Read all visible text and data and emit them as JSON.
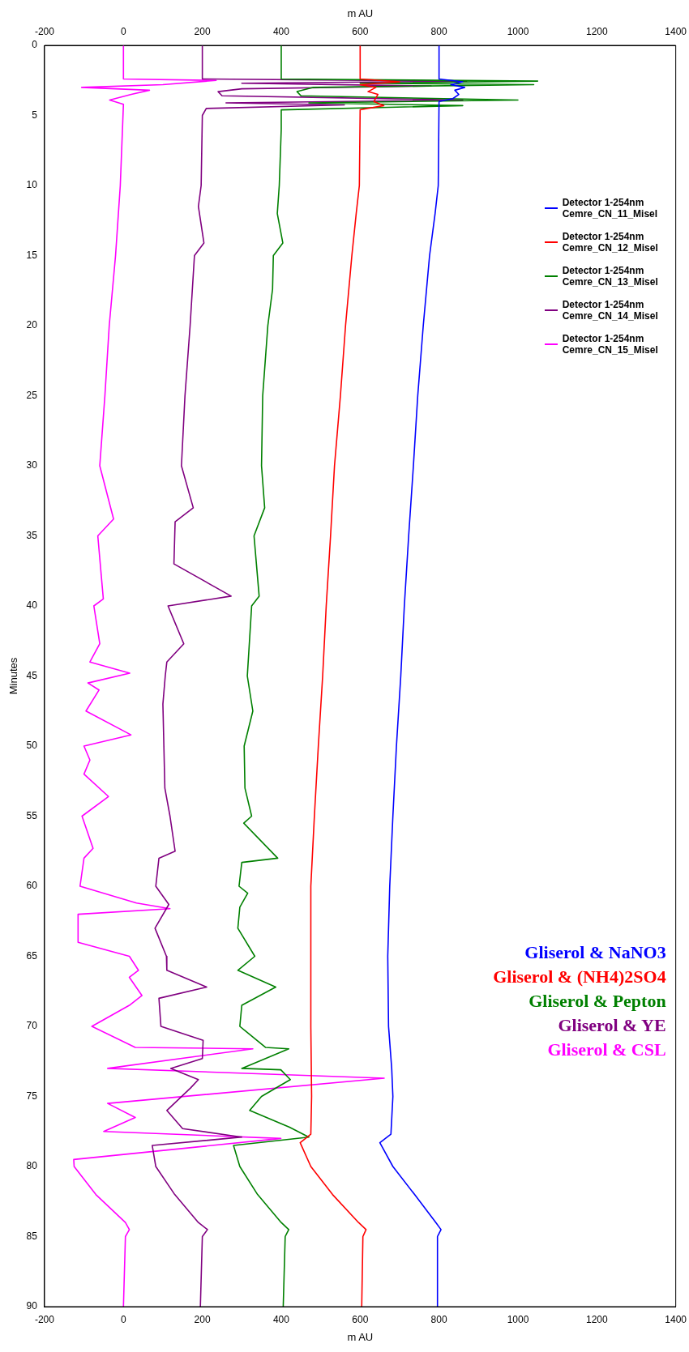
{
  "chart_data": {
    "type": "line",
    "orientation": "horizontal",
    "xlabel": "m AU",
    "x2label": "m AU",
    "ylabel": "Minutes",
    "xlim": [
      -200,
      1400
    ],
    "xticks": [
      -200,
      0,
      200,
      400,
      600,
      800,
      1000,
      1200,
      1400
    ],
    "x2lim": [
      -200,
      1400
    ],
    "x2ticks": [
      -200,
      0,
      200,
      400,
      600,
      800,
      1000,
      1200,
      1400
    ],
    "ylim": [
      90,
      0
    ],
    "yticks": [
      0,
      5,
      10,
      15,
      20,
      25,
      30,
      35,
      40,
      45,
      50,
      55,
      60,
      65,
      70,
      75,
      80,
      85,
      90
    ],
    "grid": false,
    "legend": "right",
    "marker": "none",
    "line_style": "solid",
    "annotations": [
      "Gliserol & NaNO3",
      "Gliserol & (NH4)2SO4",
      "Gliserol & Pepton",
      "Gliserol & YE",
      "Gliserol & CSL"
    ],
    "series": [
      {
        "name": "Detector 1-254nm Cemre_CN_11_Misel",
        "color": "#0000ff",
        "x": [
          0,
          2.4,
          2.6,
          2.8,
          3.0,
          3.2,
          3.5,
          3.8,
          4.0,
          10,
          12,
          15,
          20,
          25,
          30,
          35,
          40,
          45,
          50,
          55,
          60,
          65,
          70,
          73,
          75,
          77.7,
          78.3,
          80,
          82,
          84,
          84.5,
          85,
          90
        ],
        "values": [
          800,
          800,
          860,
          830,
          865,
          840,
          850,
          835,
          800,
          798,
          790,
          776,
          760,
          746,
          735,
          723,
          712,
          703,
          692,
          683,
          675,
          670,
          672,
          680,
          683,
          678,
          650,
          683,
          738,
          792,
          805,
          796,
          796
        ]
      },
      {
        "name": "Detector 1-254nm Cemre_CN_12_Misel",
        "color": "#ff0000",
        "x": [
          0,
          2.4,
          2.6,
          2.8,
          3.0,
          3.3,
          3.5,
          4.0,
          4.3,
          4.6,
          10,
          12,
          15,
          20,
          25,
          30,
          35,
          40,
          45,
          50,
          55,
          60,
          65,
          70,
          75,
          77.7,
          78.3,
          80,
          82,
          84,
          84.5,
          85,
          90
        ],
        "values": [
          600,
          600,
          700,
          600,
          640,
          620,
          645,
          635,
          660,
          600,
          598,
          590,
          579,
          563,
          550,
          535,
          525,
          514,
          505,
          494,
          484,
          475,
          475,
          475,
          477,
          475,
          448,
          475,
          530,
          596,
          615,
          607,
          604
        ]
      },
      {
        "name": "Detector 1-254nm Cemre_CN_13_Misel",
        "color": "#008000",
        "x": [
          0,
          2.4,
          2.55,
          2.7,
          2.8,
          3.0,
          3.3,
          3.6,
          3.9,
          4.1,
          4.3,
          4.6,
          6,
          10,
          12,
          14.1,
          15,
          17.4,
          20,
          25,
          30,
          33,
          35,
          39.3,
          40,
          45,
          47.5,
          50,
          53,
          55,
          55.5,
          58,
          58.3,
          60,
          60.5,
          61.5,
          63,
          65,
          66,
          67.2,
          68.5,
          70,
          71.5,
          71.6,
          73,
          73.1,
          73.8,
          75,
          76,
          77.2,
          77.9,
          78.5,
          80,
          82,
          84,
          84.5,
          85,
          90
        ],
        "values": [
          400,
          400,
          1050,
          600,
          1040,
          480,
          440,
          450,
          1000,
          470,
          860,
          400,
          400,
          395,
          390,
          404,
          380,
          378,
          366,
          353,
          350,
          358,
          331,
          344,
          325,
          314,
          328,
          306,
          308,
          325,
          305,
          391,
          300,
          293,
          315,
          295,
          290,
          333,
          290,
          386,
          300,
          295,
          360,
          419,
          300,
          399,
          423,
          350,
          320,
          421,
          470,
          279,
          295,
          340,
          400,
          419,
          410,
          405
        ]
      },
      {
        "name": "Detector 1-254nm Cemre_CN_14_Misel",
        "color": "#800080",
        "x": [
          0,
          2.4,
          2.55,
          2.7,
          2.9,
          3.1,
          3.3,
          3.6,
          3.9,
          4.1,
          4.25,
          4.5,
          5,
          10,
          11.5,
          14.1,
          15,
          20,
          25,
          30,
          33,
          34,
          37,
          39.3,
          40,
          42.7,
          44,
          45,
          47,
          53,
          55,
          57.5,
          58,
          60,
          61.3,
          63,
          65,
          66,
          67.2,
          68,
          70,
          71,
          72.3,
          73,
          73.8,
          74.4,
          76,
          77.3,
          77.9,
          78.5,
          80,
          82,
          84,
          84.5,
          85,
          90
        ],
        "values": [
          200,
          200,
          870,
          300,
          780,
          300,
          240,
          250,
          860,
          260,
          560,
          210,
          200,
          197,
          190,
          204,
          180,
          169,
          156,
          147,
          177,
          131,
          128,
          273,
          113,
          153,
          110,
          106,
          100,
          105,
          118,
          131,
          90,
          82,
          115,
          80,
          109,
          110,
          211,
          90,
          95,
          202,
          200,
          120,
          190,
          170,
          110,
          150,
          300,
          73,
          82,
          130,
          190,
          213,
          200,
          195
        ]
      },
      {
        "name": "Detector 1-254nm Cemre_CN_15_Misel",
        "color": "#ff00ff",
        "x": [
          0,
          2.4,
          2.5,
          2.8,
          3.0,
          3.2,
          3.5,
          3.9,
          4.2,
          10,
          15,
          20,
          25,
          30,
          33.8,
          35,
          39.5,
          40,
          42.7,
          44,
          44.8,
          45.5,
          46,
          47.5,
          49.2,
          50,
          51,
          52,
          53.6,
          55,
          57.3,
          58,
          60,
          61.2,
          61.6,
          62,
          64,
          65,
          66,
          66.5,
          67.8,
          68.5,
          70,
          71.5,
          71.6,
          73,
          73.7,
          75.5,
          76.5,
          77.5,
          78,
          79.5,
          80,
          82,
          84,
          84.5,
          85,
          90
        ],
        "values": [
          0,
          0,
          235,
          100,
          -106,
          66,
          20,
          -35,
          0,
          -8,
          -20,
          -36,
          -47,
          -60,
          -25,
          -65,
          -51,
          -75,
          -60,
          -85,
          16,
          -90,
          -62,
          -95,
          19,
          -100,
          -85,
          -100,
          -38,
          -105,
          -77,
          -100,
          -110,
          33,
          118,
          -115,
          -115,
          15,
          38,
          15,
          47,
          15,
          -80,
          30,
          328,
          -40,
          661,
          -40,
          30,
          -50,
          399,
          -126,
          -125,
          -70,
          5,
          15,
          5,
          0
        ]
      }
    ]
  }
}
